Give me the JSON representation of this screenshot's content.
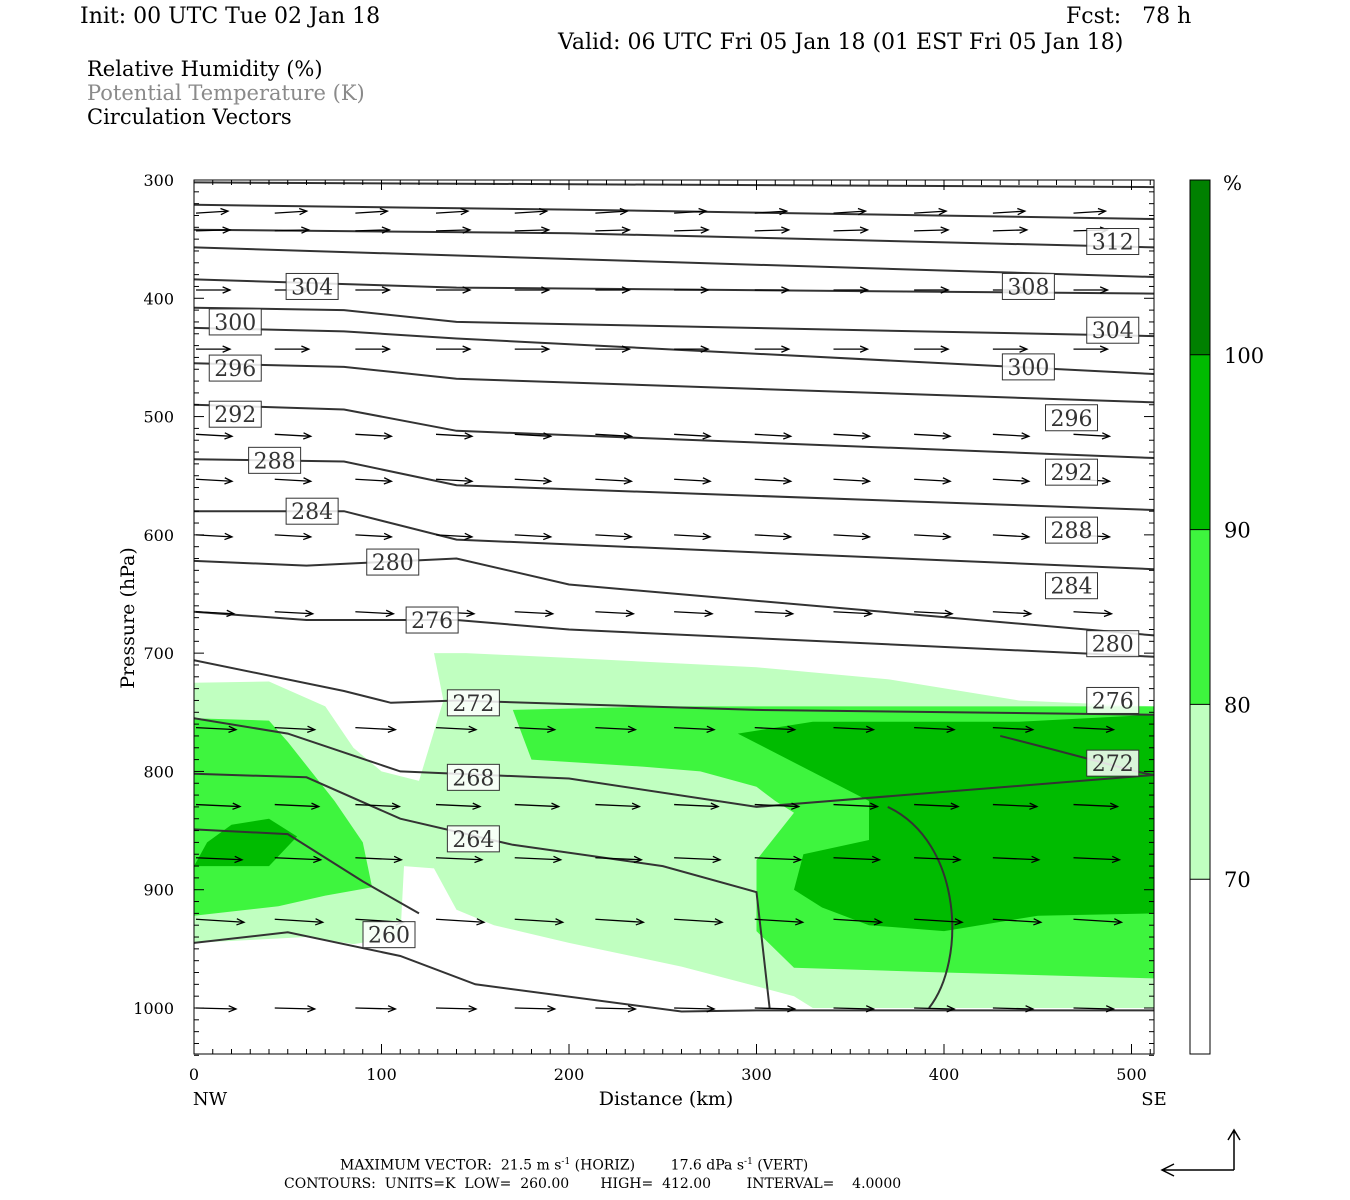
{
  "header": {
    "init": "Init: 00 UTC Tue 02 Jan 18",
    "fcst": "Fcst:   78 h",
    "valid": "Valid: 06 UTC Fri 05 Jan 18 (01 EST Fri 05 Jan 18)"
  },
  "legend": {
    "rh": "Relative Humidity (%)",
    "theta": "Potential Temperature (K)",
    "vectors": "Circulation Vectors"
  },
  "footer": {
    "max_vector": "MAXIMUM VECTOR:  21.5 m s",
    "horiz": " (HORIZ)        17.6 dPa s",
    "vert": " (VERT)",
    "exp": "-1",
    "contours": "CONTOURS:  UNITS=K  LOW=  260.00       HIGH=  412.00        INTERVAL=    4.0000"
  },
  "colors": {
    "rh_70_80": "#c0ffc0",
    "rh_80_90": "#3ef53e",
    "rh_90_100": "#00bb00",
    "rh_100": "#008000",
    "theta_line": "#333333",
    "vector": "#000000"
  },
  "chart_data": {
    "type": "cross-section",
    "xlabel": "Distance (km)",
    "ylabel": "Pressure (hPa)",
    "xlim": [
      0,
      512
    ],
    "ylim": [
      1040,
      300
    ],
    "x_ticks": [
      0,
      100,
      200,
      300,
      400,
      500
    ],
    "y_ticks": [
      300,
      400,
      500,
      600,
      700,
      800,
      900,
      1000
    ],
    "x_end_labels": [
      "NW",
      "SE"
    ],
    "colorbar": {
      "unit": "%",
      "levels": [
        70,
        80,
        90,
        100
      ],
      "colors": [
        "#ffffff",
        "#c0ffc0",
        "#3ef53e",
        "#00bb00",
        "#008000"
      ]
    },
    "rh_regions": [
      {
        "level": 70,
        "polygon": [
          [
            0,
            725
          ],
          [
            40,
            724
          ],
          [
            70,
            745
          ],
          [
            85,
            780
          ],
          [
            100,
            800
          ],
          [
            120,
            808
          ],
          [
            133,
            740
          ],
          [
            128,
            700
          ],
          [
            145,
            700
          ],
          [
            200,
            704
          ],
          [
            300,
            712
          ],
          [
            370,
            722
          ],
          [
            440,
            740
          ],
          [
            512,
            745
          ],
          [
            512,
            1000
          ],
          [
            330,
            1000
          ],
          [
            320,
            990
          ],
          [
            260,
            965
          ],
          [
            200,
            945
          ],
          [
            160,
            930
          ],
          [
            140,
            917
          ],
          [
            128,
            882
          ],
          [
            112,
            880
          ],
          [
            110,
            940
          ],
          [
            85,
            946
          ],
          [
            60,
            940
          ],
          [
            0,
            945
          ]
        ]
      },
      {
        "level": 80,
        "polygon": [
          [
            0,
            755
          ],
          [
            40,
            757
          ],
          [
            50,
            775
          ],
          [
            75,
            825
          ],
          [
            90,
            860
          ],
          [
            95,
            898
          ],
          [
            70,
            905
          ],
          [
            45,
            914
          ],
          [
            0,
            922
          ]
        ]
      },
      {
        "level": 80,
        "polygon": [
          [
            170,
            748
          ],
          [
            250,
            745
          ],
          [
            330,
            745
          ],
          [
            400,
            745
          ],
          [
            512,
            745
          ],
          [
            512,
            975
          ],
          [
            400,
            970
          ],
          [
            320,
            966
          ],
          [
            300,
            935
          ],
          [
            300,
            875
          ],
          [
            320,
            835
          ],
          [
            310,
            825
          ],
          [
            300,
            813
          ],
          [
            270,
            800
          ],
          [
            240,
            796
          ],
          [
            180,
            790
          ]
        ]
      },
      {
        "level": 90,
        "polygon": [
          [
            0,
            880
          ],
          [
            7,
            860
          ],
          [
            20,
            845
          ],
          [
            40,
            840
          ],
          [
            55,
            855
          ],
          [
            40,
            880
          ]
        ]
      },
      {
        "level": 90,
        "polygon": [
          [
            290,
            768
          ],
          [
            330,
            758
          ],
          [
            400,
            758
          ],
          [
            440,
            758
          ],
          [
            512,
            752
          ],
          [
            512,
            920
          ],
          [
            450,
            922
          ],
          [
            400,
            935
          ],
          [
            360,
            930
          ],
          [
            335,
            915
          ],
          [
            320,
            900
          ],
          [
            325,
            870
          ],
          [
            360,
            858
          ],
          [
            360,
            825
          ]
        ]
      }
    ],
    "theta_labels": [
      {
        "value": "312",
        "x": 490,
        "p": 352
      },
      {
        "value": "308",
        "x": 445,
        "p": 390
      },
      {
        "value": "304",
        "x": 63,
        "p": 390
      },
      {
        "value": "304",
        "x": 490,
        "p": 427
      },
      {
        "value": "300",
        "x": 22,
        "p": 420
      },
      {
        "value": "300",
        "x": 445,
        "p": 458
      },
      {
        "value": "296",
        "x": 22,
        "p": 459
      },
      {
        "value": "296",
        "x": 468,
        "p": 501
      },
      {
        "value": "292",
        "x": 22,
        "p": 498
      },
      {
        "value": "292",
        "x": 468,
        "p": 547
      },
      {
        "value": "288",
        "x": 43,
        "p": 537
      },
      {
        "value": "288",
        "x": 468,
        "p": 596
      },
      {
        "value": "284",
        "x": 63,
        "p": 580
      },
      {
        "value": "284",
        "x": 468,
        "p": 643
      },
      {
        "value": "280",
        "x": 106,
        "p": 623
      },
      {
        "value": "280",
        "x": 490,
        "p": 692
      },
      {
        "value": "276",
        "x": 127,
        "p": 672
      },
      {
        "value": "276",
        "x": 490,
        "p": 740
      },
      {
        "value": "272",
        "x": 149,
        "p": 742
      },
      {
        "value": "272",
        "x": 490,
        "p": 793
      },
      {
        "value": "268",
        "x": 149,
        "p": 805
      },
      {
        "value": "264",
        "x": 149,
        "p": 857
      },
      {
        "value": "260",
        "x": 104,
        "p": 938
      }
    ]
  }
}
